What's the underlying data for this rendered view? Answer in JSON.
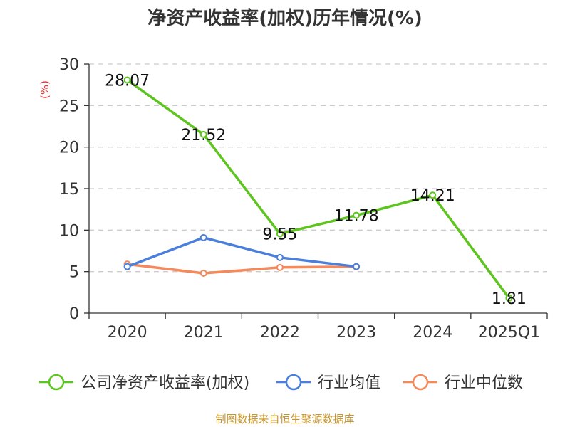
{
  "chart_data": {
    "type": "line",
    "title": "净资产收益率(加权)历年情况(%)",
    "ylabel": "(%)",
    "xlabel": "",
    "categories": [
      "2020",
      "2021",
      "2022",
      "2023",
      "2024",
      "2025Q1"
    ],
    "ylim": [
      0,
      30
    ],
    "yticks": [
      0,
      5,
      10,
      15,
      20,
      25,
      30
    ],
    "grid": true,
    "legend_position": "bottom",
    "series": [
      {
        "name": "公司净资产收益率(加权)",
        "color": "#5ec41e",
        "values": [
          28.07,
          21.52,
          9.55,
          11.78,
          14.21,
          1.81
        ],
        "labels": [
          "28.07",
          "21.52",
          "9.55",
          "11.78",
          "14.21",
          "1.81"
        ]
      },
      {
        "name": "行业均值",
        "color": "#4a7fdb",
        "values": [
          5.6,
          9.1,
          6.7,
          5.6,
          null,
          null
        ]
      },
      {
        "name": "行业中位数",
        "color": "#f5895b",
        "values": [
          5.9,
          4.8,
          5.5,
          5.6,
          null,
          null
        ]
      }
    ]
  },
  "source": {
    "text": "制图数据来自恒生聚源数据库",
    "color": "#c8952a"
  },
  "colors": {
    "ylabel": "#e03030",
    "axis": "#333333",
    "grid": "#cccccc"
  }
}
